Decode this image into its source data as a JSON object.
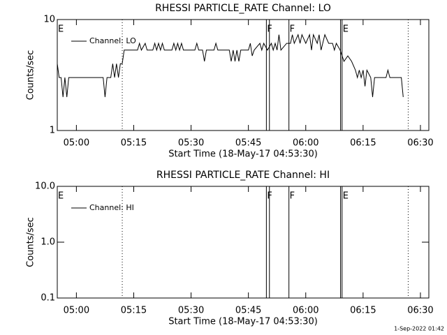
{
  "chart_data": [
    {
      "type": "line",
      "title": "RHESSI PARTICLE_RATE Channel: LO",
      "xlabel": "Start Time (18-May-17 04:53:30)",
      "ylabel": "Counts/sec",
      "log_y": true,
      "legend": "upper-left",
      "x": [
        295,
        295.5,
        296,
        296.5,
        297,
        297.5,
        298,
        307,
        307.5,
        308,
        309,
        309.5,
        310,
        310.5,
        311,
        311.5,
        312,
        312.5,
        316,
        316.5,
        317,
        318,
        318.5,
        320,
        320.5,
        321,
        321.5,
        322,
        322.5,
        323,
        325,
        325.5,
        326,
        326.5,
        327,
        327.5,
        328,
        331,
        331.5,
        332,
        333,
        333.5,
        334,
        336,
        336.5,
        337,
        340,
        340.5,
        341,
        341.5,
        342,
        342.5,
        343,
        345,
        345.5,
        346,
        346.5,
        348,
        348.5,
        349,
        350,
        351,
        351.5,
        352,
        352.5,
        353,
        353.5,
        355,
        356,
        356.5,
        357,
        358,
        358.5,
        359,
        360,
        361,
        361.5,
        362,
        363,
        363.5,
        364,
        365,
        366,
        367,
        367.5,
        368,
        369,
        370,
        371,
        372,
        373,
        373.5,
        374,
        374.5,
        375,
        375.5,
        376,
        377,
        377.5,
        378,
        380,
        381,
        381.5,
        382,
        384,
        385,
        385.5
      ],
      "series": [
        {
          "name": "Channel: LO",
          "color": "#000000",
          "values": [
            4.0,
            3.0,
            3.0,
            2.0,
            3.0,
            2.0,
            3.0,
            3.0,
            2.0,
            3.0,
            3.0,
            4.0,
            3.0,
            4.0,
            3.0,
            4.0,
            4.0,
            5.3,
            5.3,
            6.1,
            5.3,
            6.1,
            5.3,
            5.3,
            6.1,
            5.3,
            6.1,
            5.3,
            6.1,
            5.3,
            5.3,
            6.1,
            5.3,
            6.1,
            5.3,
            6.1,
            5.3,
            5.3,
            6.1,
            5.3,
            5.3,
            4.2,
            5.3,
            5.3,
            6.1,
            5.3,
            5.3,
            4.2,
            5.3,
            4.2,
            5.3,
            4.2,
            5.3,
            5.3,
            6.1,
            4.7,
            5.3,
            6.1,
            5.3,
            6.1,
            5.3,
            6.1,
            5.3,
            6.1,
            5.3,
            7.3,
            5.3,
            6.1,
            6.1,
            7.3,
            6.1,
            7.3,
            6.1,
            7.3,
            6.1,
            7.3,
            5.3,
            7.3,
            6.1,
            7.3,
            5.3,
            7.3,
            6.1,
            6.1,
            5.3,
            6.1,
            5.3,
            4.2,
            4.7,
            4.2,
            3.5,
            3.0,
            3.5,
            3.0,
            3.5,
            2.5,
            3.5,
            3.0,
            2.0,
            3.0,
            3.0,
            3.0,
            3.5,
            3.0,
            3.0,
            3.0,
            2.0
          ]
        }
      ],
      "xlim": [
        295,
        392.2
      ],
      "ylim": [
        1,
        10
      ],
      "yticks": [
        1,
        10
      ],
      "xticks": [
        {
          "value": 300,
          "label": "05:00"
        },
        {
          "value": 315,
          "label": "05:15"
        },
        {
          "value": 330,
          "label": "05:30"
        },
        {
          "value": 345,
          "label": "05:45"
        },
        {
          "value": 360,
          "label": "06:00"
        },
        {
          "value": 375,
          "label": "06:15"
        },
        {
          "value": 390,
          "label": "06:30"
        }
      ],
      "vlines": [
        {
          "x": 295,
          "style": "none",
          "label": "E"
        },
        {
          "x": 312.0,
          "style": "dotted"
        },
        {
          "x": 349.7,
          "style": "solid",
          "label": "F"
        },
        {
          "x": 350.5,
          "style": "solid"
        },
        {
          "x": 355.6,
          "style": "solid",
          "label": "F"
        },
        {
          "x": 369.1,
          "style": "solid"
        },
        {
          "x": 369.5,
          "style": "solid",
          "label": "E"
        },
        {
          "x": 386.8,
          "style": "dotted"
        }
      ]
    },
    {
      "type": "line",
      "title": "RHESSI PARTICLE_RATE Channel: HI",
      "xlabel": "Start Time (18-May-17 04:53:30)",
      "ylabel": "Counts/sec",
      "log_y": true,
      "legend": "upper-left",
      "x": [],
      "series": [
        {
          "name": "Channel: HI",
          "color": "#000000",
          "values": []
        }
      ],
      "xlim": [
        295,
        392.2
      ],
      "ylim": [
        0.1,
        10
      ],
      "yticks": [
        {
          "value": 0.1,
          "label": "0.1"
        },
        {
          "value": 1,
          "label": "1.0"
        },
        {
          "value": 10,
          "label": "10.0"
        }
      ],
      "xticks": [
        {
          "value": 300,
          "label": "05:00"
        },
        {
          "value": 315,
          "label": "05:15"
        },
        {
          "value": 330,
          "label": "05:30"
        },
        {
          "value": 345,
          "label": "05:45"
        },
        {
          "value": 360,
          "label": "06:00"
        },
        {
          "value": 375,
          "label": "06:15"
        },
        {
          "value": 390,
          "label": "06:30"
        }
      ],
      "vlines": [
        {
          "x": 295,
          "style": "none",
          "label": "E"
        },
        {
          "x": 312.0,
          "style": "dotted"
        },
        {
          "x": 349.7,
          "style": "solid",
          "label": "F"
        },
        {
          "x": 350.5,
          "style": "solid"
        },
        {
          "x": 355.6,
          "style": "solid",
          "label": "F"
        },
        {
          "x": 369.1,
          "style": "solid"
        },
        {
          "x": 369.5,
          "style": "solid",
          "label": "E"
        },
        {
          "x": 386.8,
          "style": "dotted"
        }
      ]
    }
  ],
  "footer": "1-Sep-2022 01:42"
}
